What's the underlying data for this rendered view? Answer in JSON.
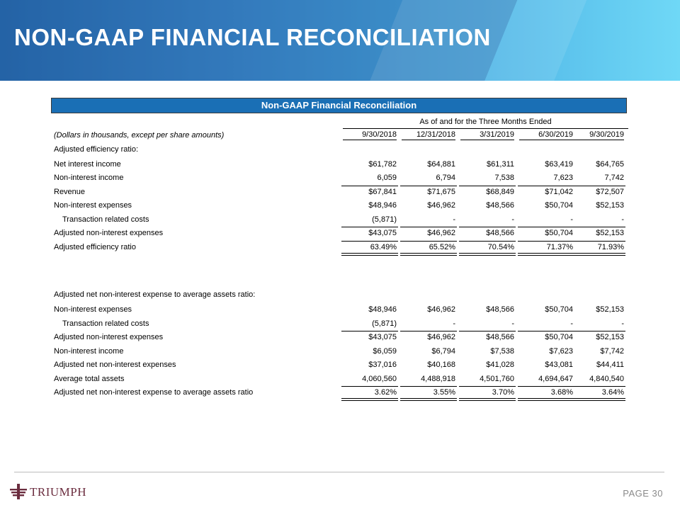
{
  "slide": {
    "title": "NON-GAAP FINANCIAL RECONCILIATION",
    "page_label": "PAGE 30",
    "logo_text": "TRIUMPH"
  },
  "table": {
    "title": "Non-GAAP Financial Reconciliation",
    "span_header": "As of and for the Three Months Ended",
    "units_note": "(Dollars in thousands, except per share amounts)",
    "columns": [
      "9/30/2018",
      "12/31/2018",
      "3/31/2019",
      "6/30/2019",
      "9/30/2019"
    ],
    "section1_title": "Adjusted efficiency ratio:",
    "section1": [
      {
        "label": "Net interest income",
        "values": [
          "$61,782",
          "$64,881",
          "$61,311",
          "$63,419",
          "$64,765"
        ]
      },
      {
        "label": "Non-interest income",
        "values": [
          "6,059",
          "6,794",
          "7,538",
          "7,623",
          "7,742"
        ]
      },
      {
        "label": "Revenue",
        "values": [
          "$67,841",
          "$71,675",
          "$68,849",
          "$71,042",
          "$72,507"
        ]
      },
      {
        "label": "Non-interest expenses",
        "values": [
          "$48,946",
          "$46,962",
          "$48,566",
          "$50,704",
          "$52,153"
        ]
      },
      {
        "label": "Transaction related costs",
        "values": [
          "(5,871)",
          "-",
          "-",
          "-",
          "-"
        ]
      },
      {
        "label": "Adjusted non-interest expenses",
        "values": [
          "$43,075",
          "$46,962",
          "$48,566",
          "$50,704",
          "$52,153"
        ]
      },
      {
        "label": "Adjusted efficiency ratio",
        "values": [
          "63.49%",
          "65.52%",
          "70.54%",
          "71.37%",
          "71.93%"
        ]
      }
    ],
    "section2_title": "Adjusted net non-interest expense to average assets ratio:",
    "section2": [
      {
        "label": "Non-interest expenses",
        "values": [
          "$48,946",
          "$46,962",
          "$48,566",
          "$50,704",
          "$52,153"
        ]
      },
      {
        "label": "Transaction related costs",
        "values": [
          "(5,871)",
          "-",
          "-",
          "-",
          "-"
        ]
      },
      {
        "label": "Adjusted non-interest expenses",
        "values": [
          "$43,075",
          "$46,962",
          "$48,566",
          "$50,704",
          "$52,153"
        ]
      },
      {
        "label": "Non-interest income",
        "values": [
          "$6,059",
          "$6,794",
          "$7,538",
          "$7,623",
          "$7,742"
        ]
      },
      {
        "label": "Adjusted net non-interest expenses",
        "values": [
          "$37,016",
          "$40,168",
          "$41,028",
          "$43,081",
          "$44,411"
        ]
      },
      {
        "label": "Average total assets",
        "values": [
          "4,060,560",
          "4,488,918",
          "4,501,760",
          "4,694,647",
          "4,840,540"
        ]
      },
      {
        "label": "Adjusted net non-interest expense to average assets ratio",
        "values": [
          "3.62%",
          "3.55%",
          "3.70%",
          "3.68%",
          "3.64%"
        ]
      }
    ]
  }
}
